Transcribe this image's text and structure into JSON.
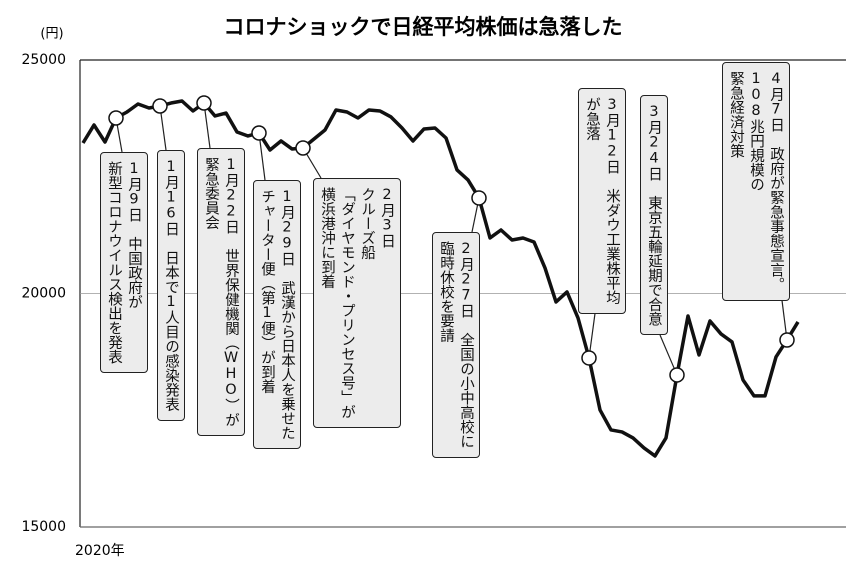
{
  "chart_data": {
    "type": "line",
    "title": "コロナショックで日経平均株価は急落した",
    "y_unit": "(円)",
    "x_label": "2020年",
    "color": "#111111",
    "ylim": [
      15000,
      25000
    ],
    "yticks": [
      15000,
      20000,
      25000
    ],
    "values": [
      23223,
      23608,
      23244,
      23758,
      23887,
      24058,
      23972,
      24015,
      24079,
      24122,
      23908,
      24079,
      23801,
      23865,
      23459,
      23373,
      23437,
      23073,
      23266,
      23095,
      23116,
      23309,
      23501,
      23930,
      23887,
      23758,
      23930,
      23908,
      23780,
      23544,
      23266,
      23523,
      23544,
      23330,
      22645,
      22431,
      22046,
      21189,
      21360,
      21146,
      21189,
      21103,
      20547,
      19819,
      20033,
      19476,
      18620,
      17507,
      17078,
      17035,
      16907,
      16693,
      16521,
      16907,
      18256,
      19519,
      18684,
      19412,
      19134,
      18963,
      18149,
      17807,
      17807,
      18641,
      19005,
      19391
    ],
    "annotations": [
      {
        "lines": [
          "1月9日　中国政府が",
          "新型コロナウイルス検出を発表"
        ]
      },
      {
        "lines": [
          "1月16日　日本で1人目の感染発表"
        ]
      },
      {
        "lines": [
          "1月22日　世界保健機関（WHO）が",
          "緊急委員会"
        ]
      },
      {
        "lines": [
          "1月29日　武漢から日本人を乗せた",
          "チャーター便（第1便）が到着"
        ]
      },
      {
        "lines": [
          "2月3日",
          "クルーズ船",
          "「ダイヤモンド・プリンセス号」が",
          "横浜港沖に到着"
        ]
      },
      {
        "lines": [
          "2月27日　全国の小中高校に",
          "臨時休校を要請"
        ]
      },
      {
        "lines": [
          "3月12日　米ダウ工業株平均",
          "が急落"
        ]
      },
      {
        "lines": [
          "3月24日　東京五輪延期で合意"
        ]
      },
      {
        "lines": [
          "4月7日　政府が緊急事態宣言。",
          "108兆円規模の",
          "緊急経済対策"
        ]
      }
    ]
  }
}
